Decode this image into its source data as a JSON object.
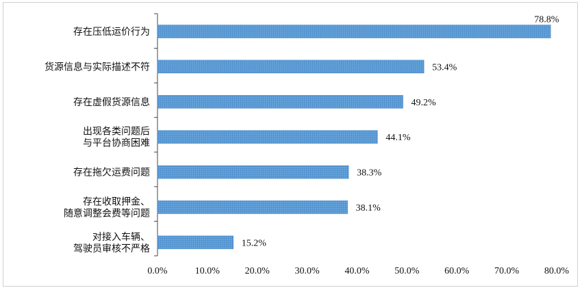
{
  "chart_data": {
    "type": "bar",
    "orientation": "horizontal",
    "categories": [
      "存在压低运价行为",
      "货源信息与实际描述不符",
      "存在虚假货源信息",
      "出现各类问题后\n与平台协商困难",
      "存在拖欠运费问题",
      "存在收取押金、\n随意调整会费等问题",
      "对接入车辆、\n驾驶员审核不严格"
    ],
    "values": [
      78.8,
      53.4,
      49.2,
      44.1,
      38.3,
      38.1,
      15.2
    ],
    "value_labels": [
      "78.8%",
      "53.4%",
      "49.2%",
      "44.1%",
      "38.3%",
      "38.1%",
      "15.2%"
    ],
    "x_ticks": [
      "0.0%",
      "10.0%",
      "20.0%",
      "30.0%",
      "40.0%",
      "50.0%",
      "60.0%",
      "70.0%",
      "80.0%"
    ],
    "xlim": [
      0,
      80
    ],
    "grid": false,
    "legend": "none",
    "bar_color": "#5b9bd5",
    "title": "",
    "xlabel": "",
    "ylabel": ""
  }
}
